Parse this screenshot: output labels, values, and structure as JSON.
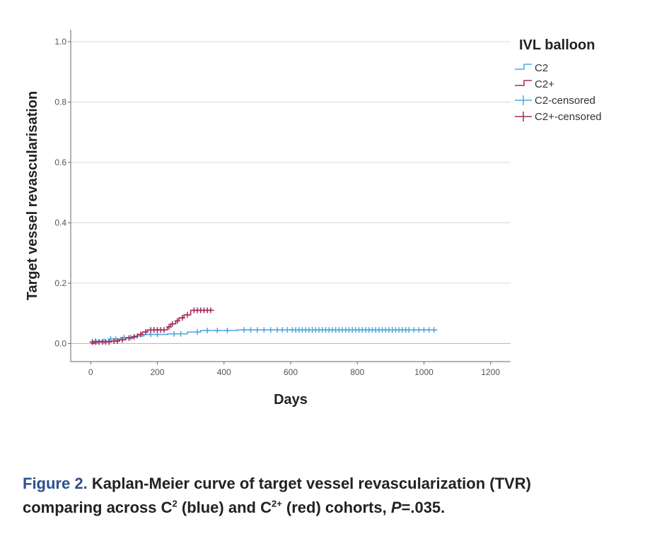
{
  "chart_data": {
    "type": "line",
    "title": "",
    "xlabel": "Days",
    "ylabel": "Target vessel revascularisation",
    "xlim": [
      -60,
      1260
    ],
    "ylim": [
      -0.06,
      1.04
    ],
    "x_ticks": [
      0,
      200,
      400,
      600,
      800,
      1000,
      1200
    ],
    "x_tick_labels": [
      "0",
      "200",
      "400",
      "600",
      "800",
      "1000",
      "1200"
    ],
    "y_ticks": [
      0.0,
      0.2,
      0.4,
      0.6,
      0.8,
      1.0
    ],
    "y_tick_labels": [
      "0.0",
      "0.2",
      "0.4",
      "0.6",
      "0.8",
      "1.0"
    ],
    "grid": "horizontal",
    "legend_position": "top-right",
    "legend_title": "IVL balloon",
    "legend_entries": [
      "C2",
      "C2+",
      "C2-censored",
      "C2+-censored"
    ],
    "series": [
      {
        "name": "C2",
        "color": "#4fa8dd",
        "steps": [
          [
            0,
            0.0
          ],
          [
            20,
            0.008
          ],
          [
            55,
            0.015
          ],
          [
            90,
            0.02
          ],
          [
            130,
            0.025
          ],
          [
            160,
            0.03
          ],
          [
            230,
            0.032
          ],
          [
            290,
            0.038
          ],
          [
            330,
            0.043
          ],
          [
            440,
            0.045
          ],
          [
            1040,
            0.045
          ]
        ],
        "censored": [
          [
            15,
            0.008
          ],
          [
            40,
            0.008
          ],
          [
            60,
            0.015
          ],
          [
            75,
            0.015
          ],
          [
            100,
            0.02
          ],
          [
            120,
            0.02
          ],
          [
            140,
            0.025
          ],
          [
            180,
            0.03
          ],
          [
            200,
            0.03
          ],
          [
            250,
            0.032
          ],
          [
            270,
            0.032
          ],
          [
            320,
            0.038
          ],
          [
            350,
            0.043
          ],
          [
            380,
            0.043
          ],
          [
            410,
            0.043
          ],
          [
            460,
            0.045
          ],
          [
            480,
            0.045
          ],
          [
            500,
            0.045
          ],
          [
            520,
            0.045
          ],
          [
            540,
            0.045
          ],
          [
            560,
            0.045
          ],
          [
            575,
            0.045
          ],
          [
            590,
            0.045
          ],
          [
            605,
            0.045
          ],
          [
            615,
            0.045
          ],
          [
            625,
            0.045
          ],
          [
            635,
            0.045
          ],
          [
            645,
            0.045
          ],
          [
            655,
            0.045
          ],
          [
            665,
            0.045
          ],
          [
            675,
            0.045
          ],
          [
            685,
            0.045
          ],
          [
            695,
            0.045
          ],
          [
            705,
            0.045
          ],
          [
            715,
            0.045
          ],
          [
            725,
            0.045
          ],
          [
            735,
            0.045
          ],
          [
            745,
            0.045
          ],
          [
            755,
            0.045
          ],
          [
            765,
            0.045
          ],
          [
            775,
            0.045
          ],
          [
            785,
            0.045
          ],
          [
            795,
            0.045
          ],
          [
            805,
            0.045
          ],
          [
            815,
            0.045
          ],
          [
            825,
            0.045
          ],
          [
            835,
            0.045
          ],
          [
            845,
            0.045
          ],
          [
            855,
            0.045
          ],
          [
            865,
            0.045
          ],
          [
            875,
            0.045
          ],
          [
            885,
            0.045
          ],
          [
            895,
            0.045
          ],
          [
            905,
            0.045
          ],
          [
            915,
            0.045
          ],
          [
            925,
            0.045
          ],
          [
            935,
            0.045
          ],
          [
            945,
            0.045
          ],
          [
            955,
            0.045
          ],
          [
            970,
            0.045
          ],
          [
            985,
            0.045
          ],
          [
            1000,
            0.045
          ],
          [
            1015,
            0.045
          ],
          [
            1030,
            0.045
          ]
        ]
      },
      {
        "name": "C2+",
        "color": "#a3285c",
        "steps": [
          [
            0,
            0.0
          ],
          [
            10,
            0.005
          ],
          [
            60,
            0.008
          ],
          [
            85,
            0.012
          ],
          [
            105,
            0.018
          ],
          [
            125,
            0.022
          ],
          [
            140,
            0.03
          ],
          [
            155,
            0.038
          ],
          [
            170,
            0.045
          ],
          [
            230,
            0.055
          ],
          [
            240,
            0.065
          ],
          [
            255,
            0.075
          ],
          [
            265,
            0.085
          ],
          [
            280,
            0.095
          ],
          [
            300,
            0.11
          ],
          [
            370,
            0.11
          ]
        ],
        "censored": [
          [
            5,
            0.005
          ],
          [
            15,
            0.005
          ],
          [
            25,
            0.005
          ],
          [
            35,
            0.005
          ],
          [
            45,
            0.005
          ],
          [
            55,
            0.005
          ],
          [
            70,
            0.008
          ],
          [
            80,
            0.008
          ],
          [
            95,
            0.012
          ],
          [
            115,
            0.018
          ],
          [
            130,
            0.022
          ],
          [
            150,
            0.03
          ],
          [
            165,
            0.038
          ],
          [
            180,
            0.045
          ],
          [
            190,
            0.045
          ],
          [
            200,
            0.045
          ],
          [
            210,
            0.045
          ],
          [
            220,
            0.045
          ],
          [
            235,
            0.055
          ],
          [
            245,
            0.065
          ],
          [
            260,
            0.075
          ],
          [
            275,
            0.085
          ],
          [
            290,
            0.095
          ],
          [
            310,
            0.11
          ],
          [
            320,
            0.11
          ],
          [
            330,
            0.11
          ],
          [
            340,
            0.11
          ],
          [
            350,
            0.11
          ],
          [
            360,
            0.11
          ]
        ]
      }
    ]
  },
  "caption": {
    "figure_label": "Figure 2.",
    "line1": "Kaplan-Meier curve of target vessel revascularization (TVR)",
    "line2_a": "comparing across C",
    "sup1": "2",
    "line2_b": " (blue) and C",
    "sup2": "2+",
    "line2_c": " (red) cohorts, ",
    "p_label": "P",
    "p_value": "=.035."
  }
}
